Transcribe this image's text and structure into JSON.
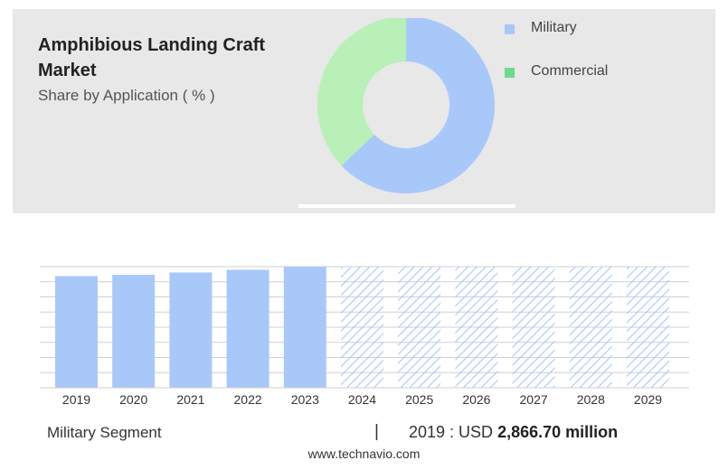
{
  "header": {
    "title": "Amphibious Landing Craft Market",
    "subtitle": "Share by Application ( % )"
  },
  "colors": {
    "military": "#a9c8fa",
    "commercial": "#b8f0b8",
    "legend_commercial": "#6fd98a",
    "grid": "#d0d0d0",
    "hatch": "#a9c8fa"
  },
  "chart_data": [
    {
      "type": "pie",
      "donut": true,
      "categories": [
        "Military",
        "Commercial"
      ],
      "values": [
        63,
        37
      ],
      "legend": "top-right"
    },
    {
      "type": "bar",
      "categories": [
        "2019",
        "2020",
        "2021",
        "2022",
        "2023",
        "2024",
        "2025",
        "2026",
        "2027",
        "2028",
        "2029"
      ],
      "values": [
        2866.7,
        2900,
        2960,
        3030,
        3110,
        3110,
        3110,
        3110,
        3110,
        3110,
        3110
      ],
      "forecast_from": "2024",
      "grid": true
    }
  ],
  "footer": {
    "segment_label": "Military Segment",
    "separator": "|",
    "value_prefix": "2019 : USD",
    "value": "2,866.70 million",
    "website": "www.technavio.com"
  }
}
